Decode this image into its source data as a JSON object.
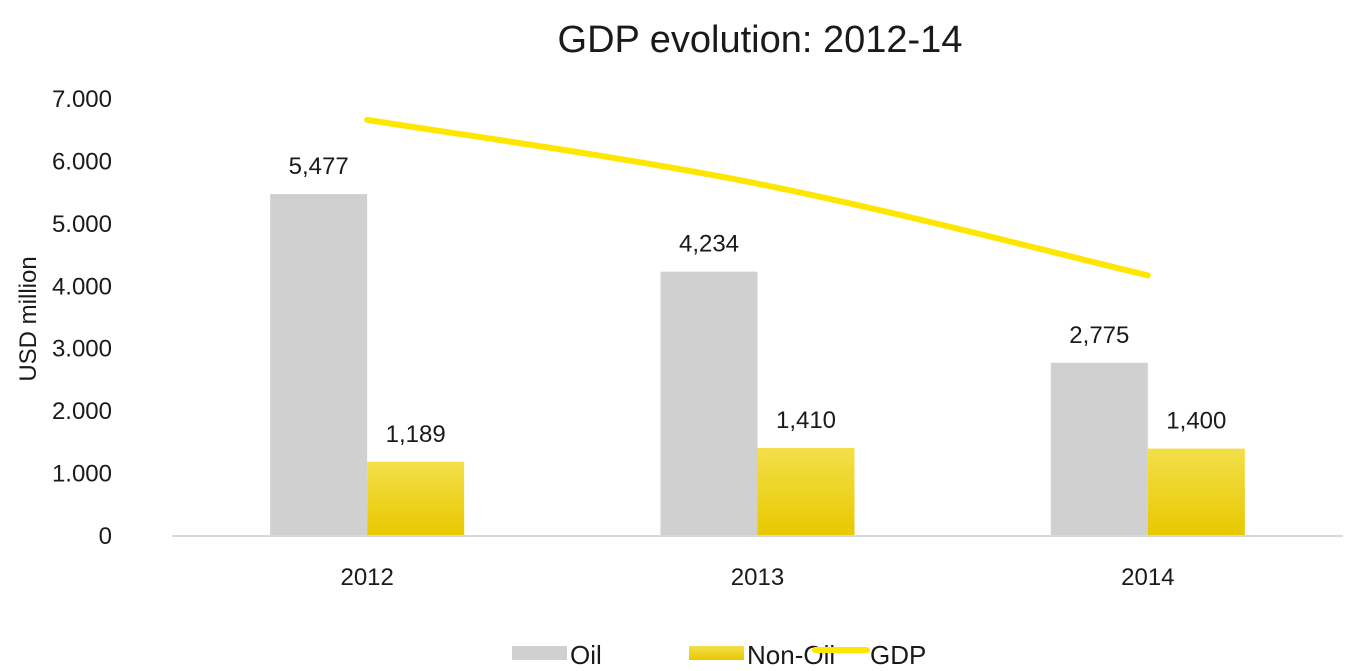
{
  "chart_data": {
    "type": "bar",
    "title": "GDP evolution: 2012-14",
    "ylabel": "USD million",
    "xlabel": "",
    "categories": [
      "2012",
      "2013",
      "2014"
    ],
    "ylim": [
      0,
      7000
    ],
    "yticks": [
      0,
      1000,
      2000,
      3000,
      4000,
      5000,
      6000,
      7000
    ],
    "ytick_labels": [
      "0",
      "1.000",
      "2.000",
      "3.000",
      "4.000",
      "5.000",
      "6.000",
      "7.000"
    ],
    "grid": false,
    "legend_position": "bottom",
    "series": [
      {
        "name": "Oil",
        "type": "bar",
        "color": "#d0d0d0",
        "values": [
          5477,
          4234,
          2775
        ],
        "labels": [
          "5,477",
          "4,234",
          "2,775"
        ]
      },
      {
        "name": "Non-Oil",
        "type": "bar",
        "color": "#f2d400",
        "values": [
          1189,
          1410,
          1400
        ],
        "labels": [
          "1,189",
          "1,410",
          "1,400"
        ]
      },
      {
        "name": "GDP",
        "type": "line",
        "color": "#ffe600",
        "values": [
          6666,
          5644,
          4175
        ]
      }
    ]
  }
}
